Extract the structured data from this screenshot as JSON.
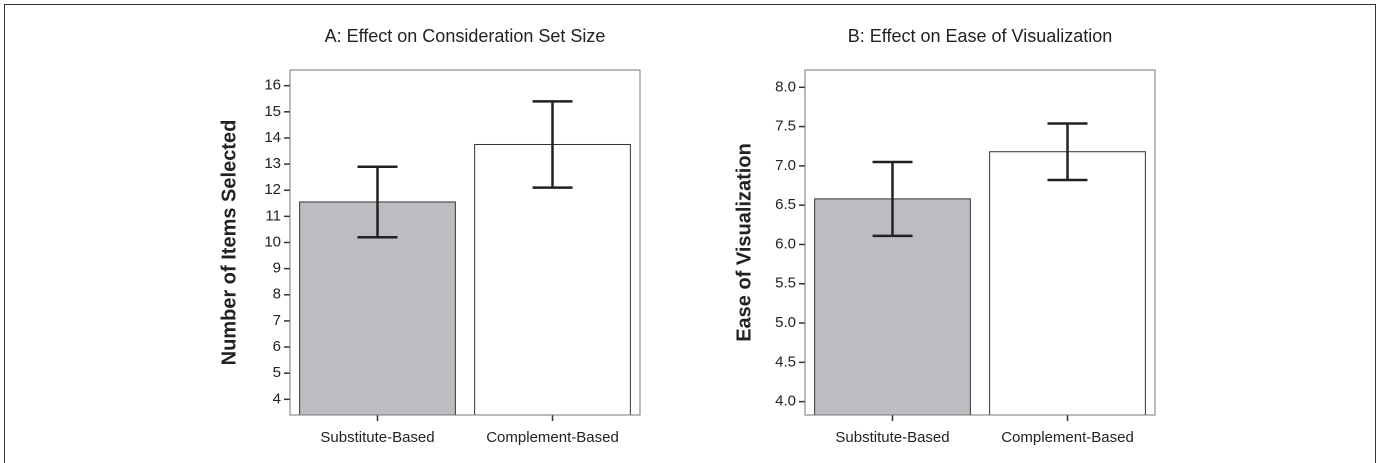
{
  "chart_data": [
    {
      "type": "bar",
      "title": "A: Effect on Consideration Set Size",
      "y_label": "Number of Items Selected",
      "categories": [
        "Substitute-Based",
        "Complement-Based"
      ],
      "values": [
        11.55,
        13.75
      ],
      "errors": [
        1.35,
        1.65
      ],
      "colors": [
        "#bcbdc1",
        "#ffffff"
      ],
      "ylim": [
        3.4,
        16.6
      ],
      "yticks": [
        4,
        5,
        6,
        7,
        8,
        9,
        10,
        11,
        12,
        13,
        14,
        15,
        16
      ]
    },
    {
      "type": "bar",
      "title": "B: Effect on Ease of Visualization",
      "y_label": "Ease of Visualization",
      "categories": [
        "Substitute-Based",
        "Complement-Based"
      ],
      "values": [
        6.58,
        7.18
      ],
      "errors": [
        0.47,
        0.36
      ],
      "colors": [
        "#bcbdc1",
        "#ffffff"
      ],
      "ylim": [
        3.83,
        8.22
      ],
      "yticks": [
        {
          "value": 4,
          "label": "4.0"
        },
        {
          "value": 4.5,
          "label": "4.5"
        },
        {
          "value": 5,
          "label": "5.0"
        },
        {
          "value": 5.5,
          "label": "5.5"
        },
        {
          "value": 6,
          "label": "6.0"
        },
        {
          "value": 6.5,
          "label": "6.5"
        },
        {
          "value": 7,
          "label": "7.0"
        },
        {
          "value": 7.5,
          "label": "7.5"
        },
        {
          "value": 8,
          "label": "8.0"
        }
      ]
    }
  ]
}
